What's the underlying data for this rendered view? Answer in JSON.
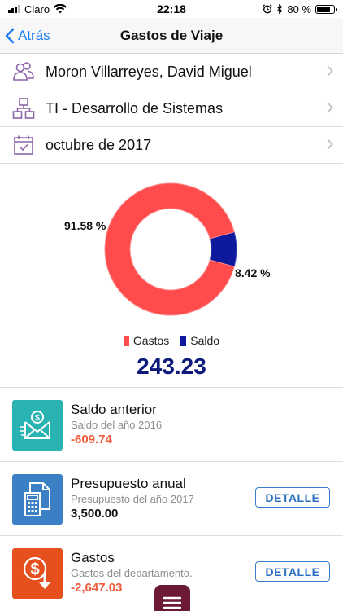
{
  "status": {
    "carrier": "Claro",
    "time": "22:18",
    "battery": "80 %",
    "battery_level": 0.8
  },
  "nav": {
    "back_label": "Atrás",
    "title": "Gastos de Viaje"
  },
  "filters": [
    {
      "label": "Moron Villarreyes, David Miguel",
      "icon": "people-icon"
    },
    {
      "label": "TI - Desarrollo de Sistemas",
      "icon": "org-chart-icon"
    },
    {
      "label": "octubre de 2017",
      "icon": "calendar-icon"
    }
  ],
  "chart_data": {
    "type": "pie",
    "categories": [
      "Gastos",
      "Saldo"
    ],
    "values": [
      91.58,
      8.42
    ],
    "labels": [
      "91.58 %",
      "8.42 %"
    ],
    "colors": [
      "#ff4b4b",
      "#0e1a9b"
    ],
    "legend": "bottom",
    "donut": true
  },
  "total": "243.23",
  "cards": [
    {
      "title": "Saldo anterior",
      "subtitle": "Saldo del año 2016",
      "amount": "-609.74",
      "amount_color": "#ef5b3b",
      "tile_color": "#29b3b3",
      "icon": "money-envelope-icon"
    },
    {
      "title": "Presupuesto anual",
      "subtitle": "Presupuesto del año 2017",
      "amount": "3,500.00",
      "amount_color": "#111111",
      "tile_color": "#3b80c4",
      "icon": "calculator-document-icon",
      "button": "DETALLE"
    },
    {
      "title": "Gastos",
      "subtitle": "Gastos del departamento.",
      "amount": "-2,647.03",
      "amount_color": "#ef5b3b",
      "tile_color": "#e6501e",
      "icon": "money-down-icon",
      "button": "DETALLE"
    }
  ],
  "fab": {
    "icon": "menu-icon"
  }
}
